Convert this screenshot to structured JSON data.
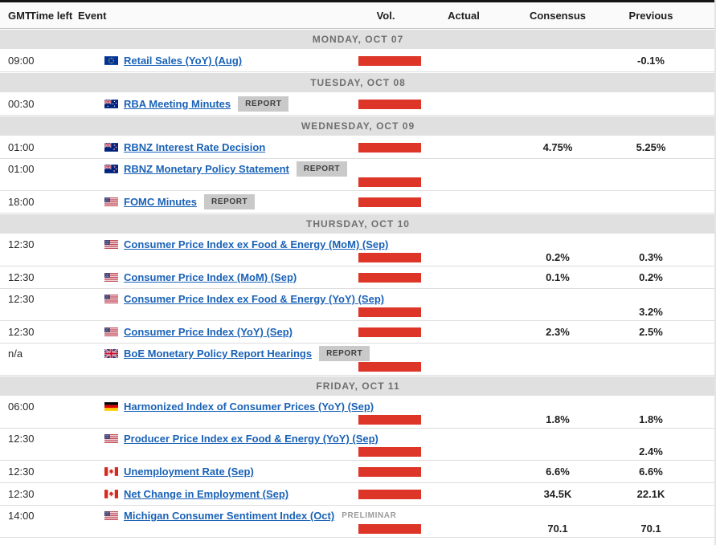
{
  "colors": {
    "volume_bar_red": "#dd3528",
    "link_blue": "#1a62b7",
    "day_band_bg": "#e0e0e0",
    "badge_bg": "#c9c9c9"
  },
  "calendar": {
    "columns": [
      {
        "label": "GMT"
      },
      {
        "label": "Time left"
      },
      {
        "label": "Event"
      },
      {
        "label": "Vol."
      },
      {
        "label": "Actual"
      },
      {
        "label": "Consensus"
      },
      {
        "label": "Previous"
      }
    ],
    "days": [
      {
        "label": "MONDAY, OCT 07",
        "rows": [
          {
            "time": "09:00",
            "flag": "eu",
            "event": "Retail Sales (YoY) (Aug)",
            "badge": "",
            "note": "",
            "vol": true,
            "actual": "",
            "consensus": "",
            "previous": "-0.1%",
            "tall": false
          }
        ]
      },
      {
        "label": "TUESDAY, OCT 08",
        "rows": [
          {
            "time": "00:30",
            "flag": "au",
            "event": "RBA Meeting Minutes",
            "badge": "REPORT",
            "note": "",
            "vol": true,
            "actual": "",
            "consensus": "",
            "previous": "",
            "tall": false
          }
        ]
      },
      {
        "label": "WEDNESDAY, OCT 09",
        "rows": [
          {
            "time": "01:00",
            "flag": "nz",
            "event": "RBNZ Interest Rate Decision",
            "badge": "",
            "note": "",
            "vol": true,
            "actual": "",
            "consensus": "4.75%",
            "previous": "5.25%",
            "tall": false
          },
          {
            "time": "01:00",
            "flag": "nz",
            "event": "RBNZ Monetary Policy Statement",
            "badge": "REPORT",
            "note": "",
            "vol": true,
            "actual": "",
            "consensus": "",
            "previous": "",
            "tall": true
          },
          {
            "time": "18:00",
            "flag": "us",
            "event": "FOMC Minutes",
            "badge": "REPORT",
            "note": "",
            "vol": true,
            "actual": "",
            "consensus": "",
            "previous": "",
            "tall": false
          }
        ]
      },
      {
        "label": "THURSDAY, OCT 10",
        "rows": [
          {
            "time": "12:30",
            "flag": "us",
            "event": "Consumer Price Index ex Food & Energy (MoM) (Sep)",
            "badge": "",
            "note": "",
            "vol": true,
            "actual": "",
            "consensus": "0.2%",
            "previous": "0.3%",
            "tall": true
          },
          {
            "time": "12:30",
            "flag": "us",
            "event": "Consumer Price Index (MoM) (Sep)",
            "badge": "",
            "note": "",
            "vol": true,
            "actual": "",
            "consensus": "0.1%",
            "previous": "0.2%",
            "tall": false
          },
          {
            "time": "12:30",
            "flag": "us",
            "event": "Consumer Price Index ex Food & Energy (YoY) (Sep)",
            "badge": "",
            "note": "",
            "vol": true,
            "actual": "",
            "consensus": "",
            "previous": "3.2%",
            "tall": true
          },
          {
            "time": "12:30",
            "flag": "us",
            "event": "Consumer Price Index (YoY) (Sep)",
            "badge": "",
            "note": "",
            "vol": true,
            "actual": "",
            "consensus": "2.3%",
            "previous": "2.5%",
            "tall": false
          },
          {
            "time": "n/a",
            "flag": "gb",
            "event": "BoE Monetary Policy Report Hearings",
            "badge": "REPORT",
            "note": "",
            "vol": true,
            "actual": "",
            "consensus": "",
            "previous": "",
            "tall": true
          }
        ]
      },
      {
        "label": "FRIDAY, OCT 11",
        "rows": [
          {
            "time": "06:00",
            "flag": "de",
            "event": "Harmonized Index of Consumer Prices (YoY) (Sep)",
            "badge": "",
            "note": "",
            "vol": true,
            "actual": "",
            "consensus": "1.8%",
            "previous": "1.8%",
            "tall": true
          },
          {
            "time": "12:30",
            "flag": "us",
            "event": "Producer Price Index ex Food & Energy (YoY) (Sep)",
            "badge": "",
            "note": "",
            "vol": true,
            "actual": "",
            "consensus": "",
            "previous": "2.4%",
            "tall": true
          },
          {
            "time": "12:30",
            "flag": "ca",
            "event": "Unemployment Rate (Sep)",
            "badge": "",
            "note": "",
            "vol": true,
            "actual": "",
            "consensus": "6.6%",
            "previous": "6.6%",
            "tall": false
          },
          {
            "time": "12:30",
            "flag": "ca",
            "event": "Net Change in Employment (Sep)",
            "badge": "",
            "note": "",
            "vol": true,
            "actual": "",
            "consensus": "34.5K",
            "previous": "22.1K",
            "tall": false
          },
          {
            "time": "14:00",
            "flag": "us",
            "event": "Michigan Consumer Sentiment Index (Oct)",
            "badge": "",
            "note": "PRELIMINAR",
            "vol": true,
            "actual": "",
            "consensus": "70.1",
            "previous": "70.1",
            "tall": true
          }
        ]
      }
    ]
  }
}
